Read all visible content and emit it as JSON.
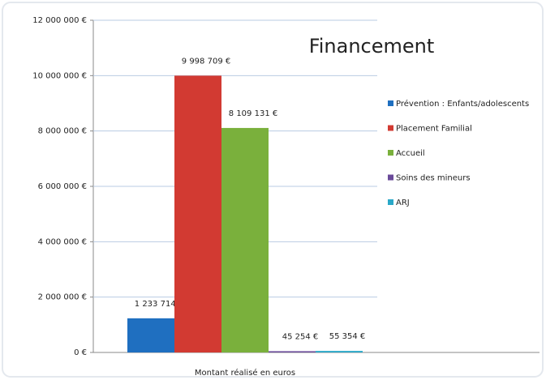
{
  "chart_data": {
    "type": "bar",
    "title": "Financement",
    "categories": [
      "Montant réalisé en euros"
    ],
    "series": [
      {
        "name": "Prévention : Enfants/adolescents",
        "color": "#1f6fc0",
        "values": [
          1233714
        ],
        "value_labels": [
          "1 233 714 €"
        ]
      },
      {
        "name": "Placement Familial",
        "color": "#d23a32",
        "values": [
          9998709
        ],
        "value_labels": [
          "9 998 709 €"
        ]
      },
      {
        "name": "Accueil",
        "color": "#7ab03c",
        "values": [
          8109131
        ],
        "value_labels": [
          "8 109 131 €"
        ]
      },
      {
        "name": "Soins des mineurs",
        "color": "#6a4a9a",
        "values": [
          45254
        ],
        "value_labels": [
          "45 254 €"
        ]
      },
      {
        "name": "ARJ",
        "color": "#2aa8c8",
        "values": [
          55354
        ],
        "value_labels": [
          "55 354 €"
        ]
      }
    ],
    "ylim": [
      0,
      12000000
    ],
    "yticks": [
      {
        "value": 0,
        "label": "0 €"
      },
      {
        "value": 2000000,
        "label": "2 000 000 €"
      },
      {
        "value": 4000000,
        "label": "4 000 000 €"
      },
      {
        "value": 6000000,
        "label": "6 000 000 €"
      },
      {
        "value": 8000000,
        "label": "8 000 000 €"
      },
      {
        "value": 10000000,
        "label": "10 000 000 €"
      },
      {
        "value": 12000000,
        "label": "12 000 000 €"
      }
    ],
    "grid": true,
    "legend": "right"
  }
}
